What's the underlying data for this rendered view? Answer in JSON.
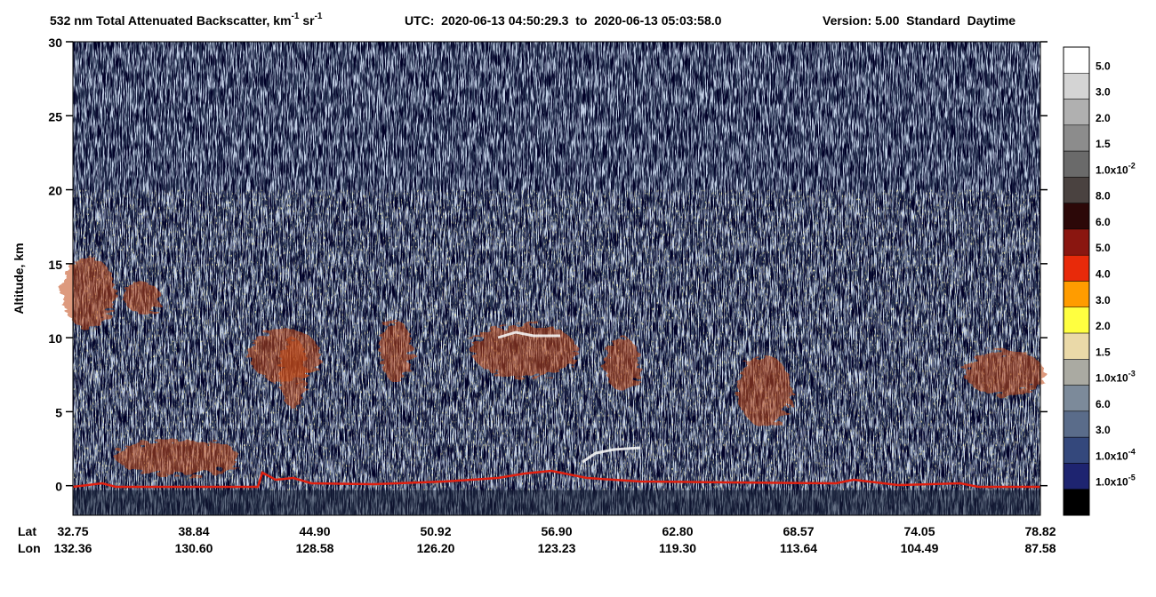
{
  "chart_data": {
    "type": "curtain",
    "title": [
      {
        "text": "532 nm Total Attenuated Backscatter, km"
      },
      {
        "text": "-1",
        "sup": true
      },
      {
        "text": " sr"
      },
      {
        "text": "-1",
        "sup": true
      }
    ],
    "utc": "UTC:  2020-06-13 04:50:29.3  to  2020-06-13 05:03:58.0",
    "version": "Version: 5.00  Standard  Daytime",
    "ylabel": "Altitude, km",
    "ylim": [
      -2,
      30
    ],
    "yticks": [
      0,
      5,
      10,
      15,
      20,
      25,
      30
    ],
    "xrows": [
      {
        "name": "Lat",
        "labels": [
          "32.75",
          "38.84",
          "44.90",
          "50.92",
          "56.90",
          "62.80",
          "68.57",
          "74.05",
          "78.82"
        ]
      },
      {
        "name": "Lon",
        "labels": [
          "132.36",
          "130.60",
          "128.58",
          "126.20",
          "123.23",
          "119.30",
          "113.64",
          "104.49",
          "87.58"
        ]
      }
    ],
    "colorbar": {
      "colors": [
        "#ffffff",
        "#d4d4d4",
        "#b0b0b0",
        "#8c8c8c",
        "#6a6a6a",
        "#4a4240",
        "#2c0808",
        "#8a1610",
        "#e82a0a",
        "#ff9c00",
        "#ffff40",
        "#ead9a8",
        "#aaaaa2",
        "#7c8a9a",
        "#5a6c8a",
        "#34487c",
        "#1e2470",
        "#000000"
      ],
      "labels": [
        {
          "text": "5.0"
        },
        {
          "text": "3.0"
        },
        {
          "text": "2.0"
        },
        {
          "text": "1.5"
        },
        {
          "text": "1.0x10",
          "sup": "-2"
        },
        {
          "text": "8.0"
        },
        {
          "text": "6.0"
        },
        {
          "text": "5.0"
        },
        {
          "text": "4.0"
        },
        {
          "text": "3.0"
        },
        {
          "text": "2.0"
        },
        {
          "text": "1.5"
        },
        {
          "text": "1.0x10",
          "sup": "-3"
        },
        {
          "text": "6.0"
        },
        {
          "text": "3.0"
        },
        {
          "text": "1.0x10",
          "sup": "-4"
        },
        {
          "text": "1.0x10",
          "sup": "-5"
        }
      ]
    }
  }
}
